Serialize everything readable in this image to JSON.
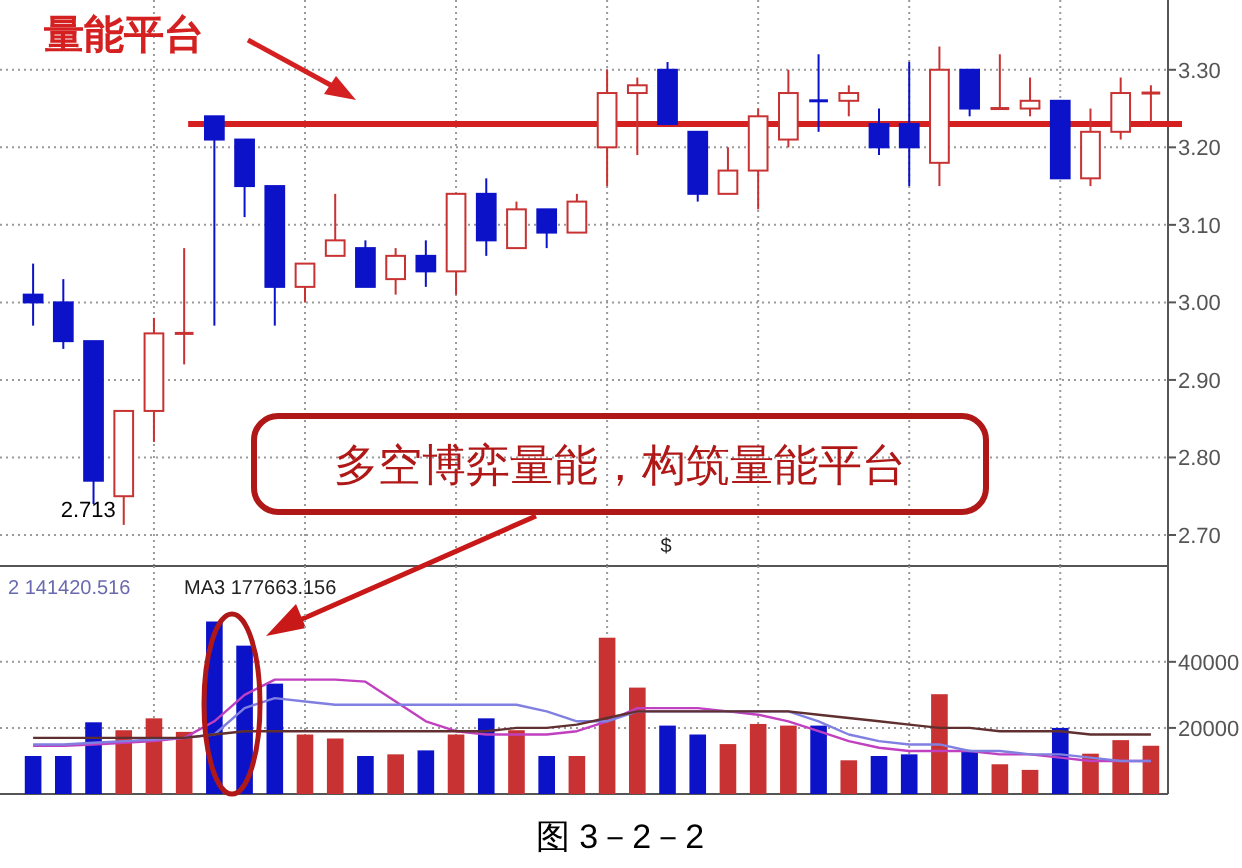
{
  "chart_data": [
    {
      "type": "candlestick",
      "categories": [
        null,
        null,
        null,
        null,
        null,
        null,
        null,
        null,
        null,
        null,
        null,
        null,
        null,
        null,
        null,
        null,
        null,
        null,
        null,
        null,
        null,
        null,
        null,
        null,
        null,
        null,
        null,
        null,
        null,
        null,
        null,
        null,
        null,
        null,
        null,
        null,
        null,
        null
      ],
      "ohlc": [
        [
          3.01,
          3.05,
          2.97,
          3.0
        ],
        [
          3.0,
          3.03,
          2.94,
          2.95
        ],
        [
          2.95,
          2.95,
          2.74,
          2.77
        ],
        [
          2.75,
          2.86,
          2.713,
          2.86
        ],
        [
          2.86,
          2.98,
          2.82,
          2.96
        ],
        [
          2.96,
          3.07,
          2.92,
          2.96
        ],
        [
          3.24,
          3.24,
          2.97,
          3.21
        ],
        [
          3.21,
          3.21,
          3.11,
          3.15
        ],
        [
          3.15,
          3.15,
          2.97,
          3.02
        ],
        [
          3.02,
          3.05,
          3.0,
          3.05
        ],
        [
          3.06,
          3.14,
          3.06,
          3.08
        ],
        [
          3.07,
          3.08,
          3.02,
          3.02
        ],
        [
          3.03,
          3.07,
          3.01,
          3.06
        ],
        [
          3.06,
          3.08,
          3.02,
          3.04
        ],
        [
          3.04,
          3.14,
          3.01,
          3.14
        ],
        [
          3.14,
          3.16,
          3.06,
          3.08
        ],
        [
          3.07,
          3.13,
          3.07,
          3.12
        ],
        [
          3.12,
          3.12,
          3.07,
          3.09
        ],
        [
          3.09,
          3.14,
          3.09,
          3.13
        ],
        [
          3.2,
          3.3,
          3.15,
          3.27
        ],
        [
          3.27,
          3.29,
          3.19,
          3.28
        ],
        [
          3.3,
          3.31,
          3.23,
          3.23
        ],
        [
          3.22,
          3.22,
          3.13,
          3.14
        ],
        [
          3.14,
          3.2,
          3.14,
          3.17
        ],
        [
          3.17,
          3.25,
          3.12,
          3.24
        ],
        [
          3.21,
          3.3,
          3.2,
          3.27
        ],
        [
          3.26,
          3.32,
          3.22,
          3.26
        ],
        [
          3.26,
          3.28,
          3.24,
          3.27
        ],
        [
          3.23,
          3.25,
          3.19,
          3.2
        ],
        [
          3.23,
          3.31,
          3.15,
          3.2
        ],
        [
          3.18,
          3.33,
          3.15,
          3.3
        ],
        [
          3.3,
          3.3,
          3.24,
          3.25
        ],
        [
          3.25,
          3.32,
          3.25,
          3.25
        ],
        [
          3.25,
          3.29,
          3.24,
          3.26
        ],
        [
          3.26,
          3.26,
          3.16,
          3.16
        ],
        [
          3.16,
          3.25,
          3.15,
          3.22
        ],
        [
          3.22,
          3.29,
          3.21,
          3.27
        ],
        [
          3.27,
          3.28,
          3.23,
          3.27
        ]
      ],
      "colors": [
        "#0c12c8",
        "#0c12c8",
        "#0c12c8",
        "#c83232",
        "#c83232",
        "#c83232",
        "#0c12c8",
        "#0c12c8",
        "#0c12c8",
        "#c83232",
        "#c83232",
        "#0c12c8",
        "#c83232",
        "#0c12c8",
        "#c83232",
        "#0c12c8",
        "#c83232",
        "#0c12c8",
        "#c83232",
        "#c83232",
        "#c83232",
        "#0c12c8",
        "#0c12c8",
        "#c83232",
        "#c83232",
        "#c83232",
        "#0c12c8",
        "#c83232",
        "#0c12c8",
        "#0c12c8",
        "#c83232",
        "#0c12c8",
        "#c83232",
        "#c83232",
        "#0c12c8",
        "#c83232",
        "#c83232",
        "#c83232"
      ],
      "ylim": [
        2.66,
        3.39
      ],
      "yticks": [
        {
          "value": 2.7,
          "label": "2.70"
        },
        {
          "value": 2.8,
          "label": "2.80"
        },
        {
          "value": 2.9,
          "label": "2.90"
        },
        {
          "value": 3.0,
          "label": "3.00"
        },
        {
          "value": 3.1,
          "label": "3.10"
        },
        {
          "value": 3.2,
          "label": "3.20"
        },
        {
          "value": 3.3,
          "label": "3.30"
        }
      ],
      "grid": true,
      "ref_lines": [
        {
          "axis": "y",
          "value": 3.23,
          "label": "量能平台",
          "color": "#d42020"
        }
      ],
      "annotations": [
        "多空博弈量能，构筑量能平台",
        "2.713",
        "$"
      ]
    },
    {
      "type": "bar",
      "categories": [
        null,
        null,
        null,
        null,
        null,
        null,
        null,
        null,
        null,
        null,
        null,
        null,
        null,
        null,
        null,
        null,
        null,
        null,
        null,
        null,
        null,
        null,
        null,
        null,
        null,
        null,
        null,
        null,
        null,
        null,
        null,
        null,
        null,
        null,
        null,
        null,
        null,
        null
      ],
      "series": [
        {
          "type": "bar",
          "colors": [
            "#0c12c8",
            "#0c12c8",
            "#0c12c8",
            "#c83232",
            "#c83232",
            "#c83232",
            "#0c12c8",
            "#0c12c8",
            "#0c12c8",
            "#c83232",
            "#c83232",
            "#0c12c8",
            "#c83232",
            "#0c12c8",
            "#c83232",
            "#0c12c8",
            "#c83232",
            "#0c12c8",
            "#c83232",
            "#c83232",
            "#c83232",
            "#0c12c8",
            "#0c12c8",
            "#c83232",
            "#c83232",
            "#c83232",
            "#0c12c8",
            "#c83232",
            "#0c12c8",
            "#0c12c8",
            "#c83232",
            "#0c12c8",
            "#c83232",
            "#c83232",
            "#0c12c8",
            "#c83232",
            "#c83232",
            "#c83232"
          ],
          "values": [
            11500,
            11500,
            21700,
            19300,
            22900,
            18800,
            52200,
            44900,
            33400,
            18000,
            16800,
            11500,
            12000,
            13200,
            18000,
            22900,
            19300,
            11500,
            11500,
            47300,
            32200,
            20700,
            18000,
            15100,
            21200,
            20700,
            20700,
            10200,
            11500,
            12000,
            30200,
            13200,
            9000,
            7300,
            20000,
            12200,
            16300,
            14600
          ]
        },
        {
          "type": "line",
          "color": "#c040c0",
          "values": [
            14600,
            14600,
            15000,
            15500,
            16000,
            17000,
            22000,
            30000,
            34600,
            34600,
            34600,
            34000,
            28000,
            22000,
            19000,
            18000,
            18000,
            18000,
            19000,
            22000,
            26000,
            26000,
            26000,
            25000,
            24000,
            22000,
            19000,
            16000,
            14000,
            13000,
            13000,
            13000,
            12000,
            12000,
            11000,
            10000,
            10000,
            10000
          ]
        },
        {
          "type": "line",
          "color": "#8080e0",
          "values": [
            15000,
            15000,
            15500,
            16000,
            16500,
            17000,
            18000,
            26000,
            29000,
            28000,
            27000,
            27000,
            27000,
            27000,
            27000,
            27000,
            27000,
            25000,
            22000,
            22000,
            25000,
            25000,
            25000,
            25000,
            25000,
            25000,
            22000,
            18000,
            16000,
            15000,
            15000,
            13000,
            13000,
            12000,
            12000,
            11000,
            10000,
            10000
          ]
        },
        {
          "type": "line",
          "color": "#603030",
          "values": [
            17000,
            17000,
            17000,
            17000,
            17000,
            17000,
            18000,
            19000,
            19000,
            19000,
            19000,
            19000,
            19000,
            19000,
            19000,
            19000,
            20000,
            20000,
            21000,
            23000,
            25000,
            25000,
            25000,
            25000,
            25000,
            25000,
            24000,
            23000,
            22000,
            21000,
            20000,
            20000,
            19000,
            19000,
            19000,
            18000,
            18000,
            18000
          ]
        }
      ],
      "ylim": [
        0,
        69000
      ],
      "yticks": [
        20000,
        40000
      ],
      "grid": true,
      "annotations": [
        "2 141420.516",
        "MA3 177663.156",
        "图 3－2－2"
      ]
    }
  ]
}
